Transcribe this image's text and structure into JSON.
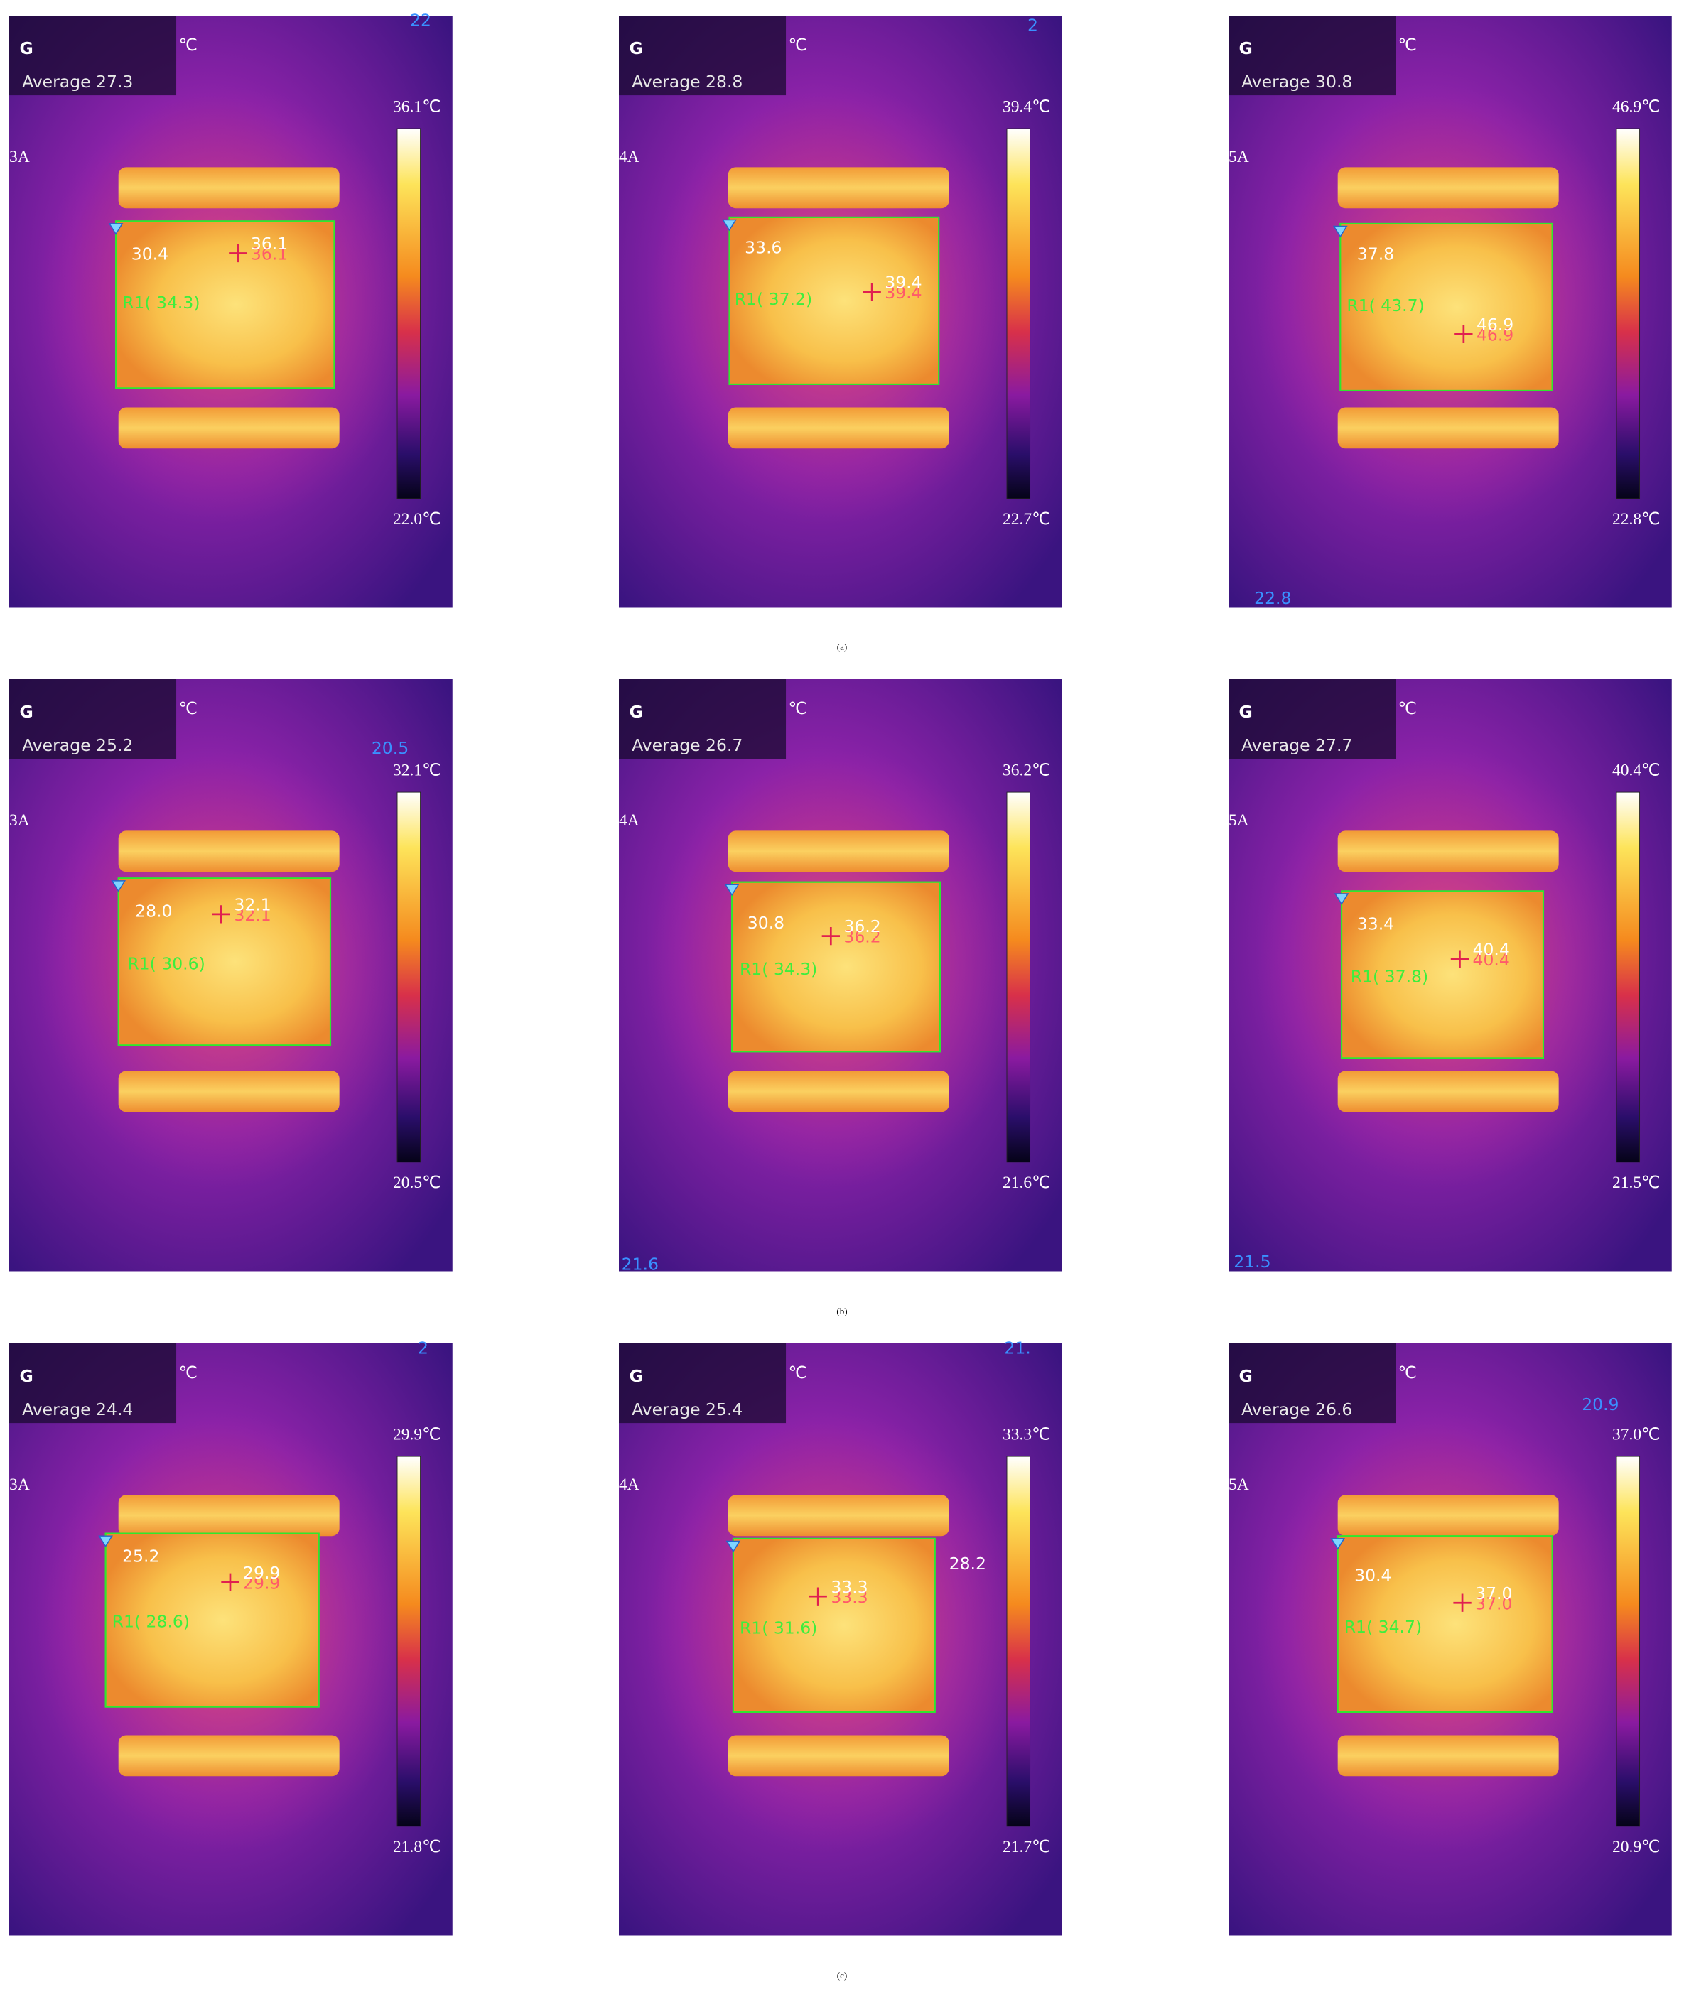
{
  "rows": [
    {
      "caption": "(a)",
      "panels": [
        {
          "mode": "G",
          "unit": "℃",
          "average": "Average 27.3",
          "current": "3A",
          "scale_max": "36.1℃",
          "scale_min": "22.0℃",
          "box_min": "30.4",
          "hotspot": "36.1",
          "region": "R1( 34.3)",
          "marker": "22"
        },
        {
          "mode": "G",
          "unit": "℃",
          "average": "Average 28.8",
          "current": "4A",
          "scale_max": "39.4℃",
          "scale_min": "22.7℃",
          "box_min": "33.6",
          "hotspot": "39.4",
          "region": "R1( 37.2)",
          "marker": "2"
        },
        {
          "mode": "G",
          "unit": "℃",
          "average": "Average 30.8",
          "current": "5A",
          "scale_max": "46.9℃",
          "scale_min": "22.8℃",
          "box_min": "37.8",
          "hotspot": "46.9",
          "region": "R1( 43.7)",
          "marker": "22.8"
        }
      ]
    },
    {
      "caption": "(b)",
      "panels": [
        {
          "mode": "G",
          "unit": "℃",
          "average": "Average 25.2",
          "current": "3A",
          "scale_max": "32.1℃",
          "scale_min": "20.5℃",
          "box_min": "28.0",
          "hotspot": "32.1",
          "region": "R1( 30.6)",
          "marker": "20.5"
        },
        {
          "mode": "G",
          "unit": "℃",
          "average": "Average 26.7",
          "current": "4A",
          "scale_max": "36.2℃",
          "scale_min": "21.6℃",
          "box_min": "30.8",
          "hotspot": "36.2",
          "region": "R1( 34.3)",
          "marker": "21.6"
        },
        {
          "mode": "G",
          "unit": "℃",
          "average": "Average 27.7",
          "current": "5A",
          "scale_max": "40.4℃",
          "scale_min": "21.5℃",
          "box_min": "33.4",
          "hotspot": "40.4",
          "region": "R1( 37.8)",
          "marker": "21.5"
        }
      ]
    },
    {
      "caption": "(c)",
      "panels": [
        {
          "mode": "G",
          "unit": "℃",
          "average": "Average 24.4",
          "current": "3A",
          "scale_max": "29.9℃",
          "scale_min": "21.8℃",
          "box_min": "25.2",
          "hotspot": "29.9",
          "region": "R1( 28.6)",
          "marker": "2"
        },
        {
          "mode": "G",
          "unit": "℃",
          "average": "Average 25.4",
          "current": "4A",
          "scale_max": "33.3℃",
          "scale_min": "21.7℃",
          "box_min": "28.2",
          "hotspot": "33.3",
          "region": "R1( 31.6)",
          "marker": "21."
        },
        {
          "mode": "G",
          "unit": "℃",
          "average": "Average 26.6",
          "current": "5A",
          "scale_max": "37.0℃",
          "scale_min": "20.9℃",
          "box_min": "30.4",
          "hotspot": "37.0",
          "region": "R1( 34.7)",
          "marker": "20.9"
        }
      ]
    }
  ]
}
